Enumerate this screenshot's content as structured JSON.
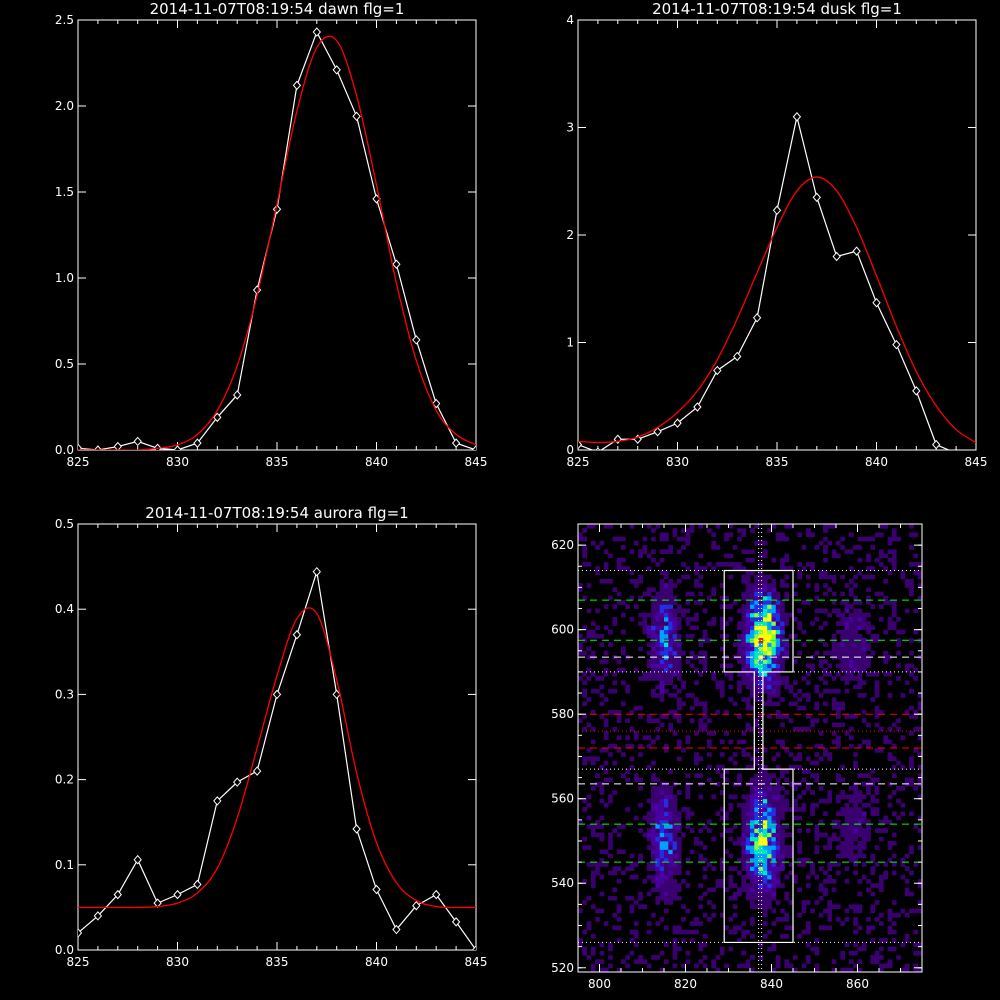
{
  "chart_data": [
    {
      "type": "line",
      "title": "2014-11-07T08:19:54 dawn flg=1",
      "xlim": [
        825,
        845
      ],
      "ylim": [
        0,
        2.5
      ],
      "xticks": [
        "825",
        "830",
        "835",
        "840",
        "845"
      ],
      "yticks": [
        "0.0",
        "0.5",
        "1.0",
        "1.5",
        "2.0",
        "2.5"
      ],
      "series": [
        {
          "style": "diamond-line",
          "color": "#ffffff",
          "x": [
            825,
            826,
            827,
            828,
            829,
            830,
            831,
            832,
            833,
            834,
            835,
            836,
            837,
            838,
            839,
            840,
            841,
            842,
            843,
            844,
            845
          ],
          "y": [
            0.01,
            0.0,
            0.02,
            0.05,
            0.01,
            0.0,
            0.04,
            0.19,
            0.32,
            0.93,
            1.4,
            2.12,
            2.43,
            2.21,
            1.94,
            1.46,
            1.08,
            0.64,
            0.27,
            0.04,
            0.0
          ]
        },
        {
          "style": "line",
          "color": "#ff0000",
          "x": [
            825,
            826,
            827,
            828,
            829,
            830,
            831,
            832,
            833,
            834,
            835,
            836,
            837,
            838,
            839,
            840,
            841,
            842,
            843,
            844,
            845
          ],
          "y": [
            0.0,
            0.0,
            0.0,
            0.0,
            0.01,
            0.03,
            0.09,
            0.23,
            0.49,
            0.9,
            1.43,
            1.97,
            2.34,
            2.38,
            2.06,
            1.54,
            0.97,
            0.52,
            0.23,
            0.09,
            0.03
          ]
        }
      ]
    },
    {
      "type": "line",
      "title": "2014-11-07T08:19:54 dusk flg=1",
      "xlim": [
        825,
        845
      ],
      "ylim": [
        0,
        4
      ],
      "xticks": [
        "825",
        "830",
        "835",
        "840",
        "845"
      ],
      "yticks": [
        "0",
        "1",
        "2",
        "3",
        "4"
      ],
      "series": [
        {
          "style": "diamond-line",
          "color": "#ffffff",
          "x": [
            825,
            826,
            827,
            828,
            829,
            830,
            831,
            832,
            833,
            834,
            835,
            836,
            837,
            838,
            839,
            840,
            841,
            842,
            843,
            844,
            845
          ],
          "y": [
            0.05,
            -0.02,
            0.1,
            0.1,
            0.17,
            0.25,
            0.4,
            0.74,
            0.87,
            1.23,
            2.23,
            3.1,
            2.35,
            1.8,
            1.85,
            1.37,
            0.98,
            0.55,
            0.05,
            -0.03,
            -0.05
          ]
        },
        {
          "style": "line",
          "color": "#ff0000",
          "x": [
            825,
            826,
            827,
            828,
            829,
            830,
            831,
            832,
            833,
            834,
            835,
            836,
            837,
            838,
            839,
            840,
            841,
            842,
            843,
            844,
            845
          ],
          "y": [
            0.08,
            0.07,
            0.08,
            0.12,
            0.21,
            0.35,
            0.55,
            0.84,
            1.22,
            1.65,
            2.07,
            2.41,
            2.54,
            2.41,
            2.07,
            1.62,
            1.15,
            0.73,
            0.41,
            0.19,
            0.07
          ]
        }
      ]
    },
    {
      "type": "line",
      "title": "2014-11-07T08:19:54 aurora flg=1",
      "xlim": [
        825,
        845
      ],
      "ylim": [
        0,
        0.5
      ],
      "xticks": [
        "825",
        "830",
        "835",
        "840",
        "845"
      ],
      "yticks": [
        "0.0",
        "0.1",
        "0.2",
        "0.3",
        "0.4",
        "0.5"
      ],
      "series": [
        {
          "style": "diamond-line",
          "color": "#ffffff",
          "x": [
            825,
            826,
            827,
            828,
            829,
            830,
            831,
            832,
            833,
            834,
            835,
            836,
            837,
            838,
            839,
            840,
            841,
            842,
            843,
            844,
            845
          ],
          "y": [
            0.02,
            0.04,
            0.065,
            0.106,
            0.055,
            0.065,
            0.077,
            0.175,
            0.197,
            0.21,
            0.3,
            0.37,
            0.444,
            0.3,
            0.142,
            0.071,
            0.024,
            0.052,
            0.065,
            0.033,
            0.0
          ]
        },
        {
          "style": "line",
          "color": "#ff0000",
          "x": [
            825,
            826,
            827,
            828,
            829,
            830,
            831,
            832,
            833,
            834,
            835,
            836,
            837,
            838,
            839,
            840,
            841,
            842,
            843,
            844,
            845
          ],
          "y": [
            0.05,
            0.05,
            0.05,
            0.05,
            0.051,
            0.055,
            0.067,
            0.096,
            0.155,
            0.237,
            0.322,
            0.389,
            0.395,
            0.317,
            0.208,
            0.126,
            0.079,
            0.058,
            0.051,
            0.05,
            0.05
          ]
        }
      ]
    },
    {
      "type": "heatmap",
      "title": "",
      "xlim": [
        795,
        875
      ],
      "ylim": [
        519,
        625
      ],
      "xticks": [
        "800",
        "820",
        "840",
        "860"
      ],
      "yticks": [
        "520",
        "540",
        "560",
        "580",
        "600",
        "620"
      ],
      "colormap": [
        "#000000",
        "#3a0070",
        "#4a00a0",
        "#2030e0",
        "#00a0ff",
        "#00e8c0",
        "#80ff40",
        "#ffff00",
        "#ff0000"
      ],
      "blobs": [
        {
          "cx": 838,
          "cy": 598,
          "sx": 2.6,
          "sy": 7,
          "amp": 1.0
        },
        {
          "cx": 838,
          "cy": 550,
          "sx": 2.6,
          "sy": 8,
          "amp": 0.75
        },
        {
          "cx": 815,
          "cy": 598,
          "sx": 2.2,
          "sy": 7,
          "amp": 0.45
        },
        {
          "cx": 815,
          "cy": 550,
          "sx": 2.2,
          "sy": 8,
          "amp": 0.45
        },
        {
          "cx": 859,
          "cy": 596,
          "sx": 3.5,
          "sy": 8,
          "amp": 0.18
        },
        {
          "cx": 859,
          "cy": 554,
          "sx": 3.5,
          "sy": 8,
          "amp": 0.15
        }
      ],
      "peaks": [
        {
          "x": 837,
          "y": 597,
          "color": "#ff0000"
        },
        {
          "x": 838,
          "y": 549,
          "color": "#ffff00"
        }
      ],
      "outline_x": [
        829,
        845
      ],
      "outline_y": [
        526,
        567,
        590,
        614
      ],
      "neck_x": [
        836,
        838
      ],
      "center_x": 837,
      "hlines": [
        {
          "y": 614,
          "color": "#ffffff",
          "dash": "dot"
        },
        {
          "y": 607,
          "color": "#00ff00",
          "dash": "dash"
        },
        {
          "y": 597.5,
          "color": "#00ff00",
          "dash": "dash"
        },
        {
          "y": 593.5,
          "color": "#ffffff",
          "dash": "dash"
        },
        {
          "y": 590,
          "color": "#ffffff",
          "dash": "dot"
        },
        {
          "y": 580,
          "color": "#ff0000",
          "dash": "dash"
        },
        {
          "y": 576,
          "color": "#ff0000",
          "dash": "dot"
        },
        {
          "y": 572,
          "color": "#ff0000",
          "dash": "dash"
        },
        {
          "y": 567,
          "color": "#ffffff",
          "dash": "dot"
        },
        {
          "y": 563.5,
          "color": "#ffffff",
          "dash": "dash"
        },
        {
          "y": 554,
          "color": "#00ff00",
          "dash": "dash"
        },
        {
          "y": 545,
          "color": "#00ff00",
          "dash": "dash"
        },
        {
          "y": 526,
          "color": "#ffffff",
          "dash": "dot"
        }
      ]
    }
  ]
}
